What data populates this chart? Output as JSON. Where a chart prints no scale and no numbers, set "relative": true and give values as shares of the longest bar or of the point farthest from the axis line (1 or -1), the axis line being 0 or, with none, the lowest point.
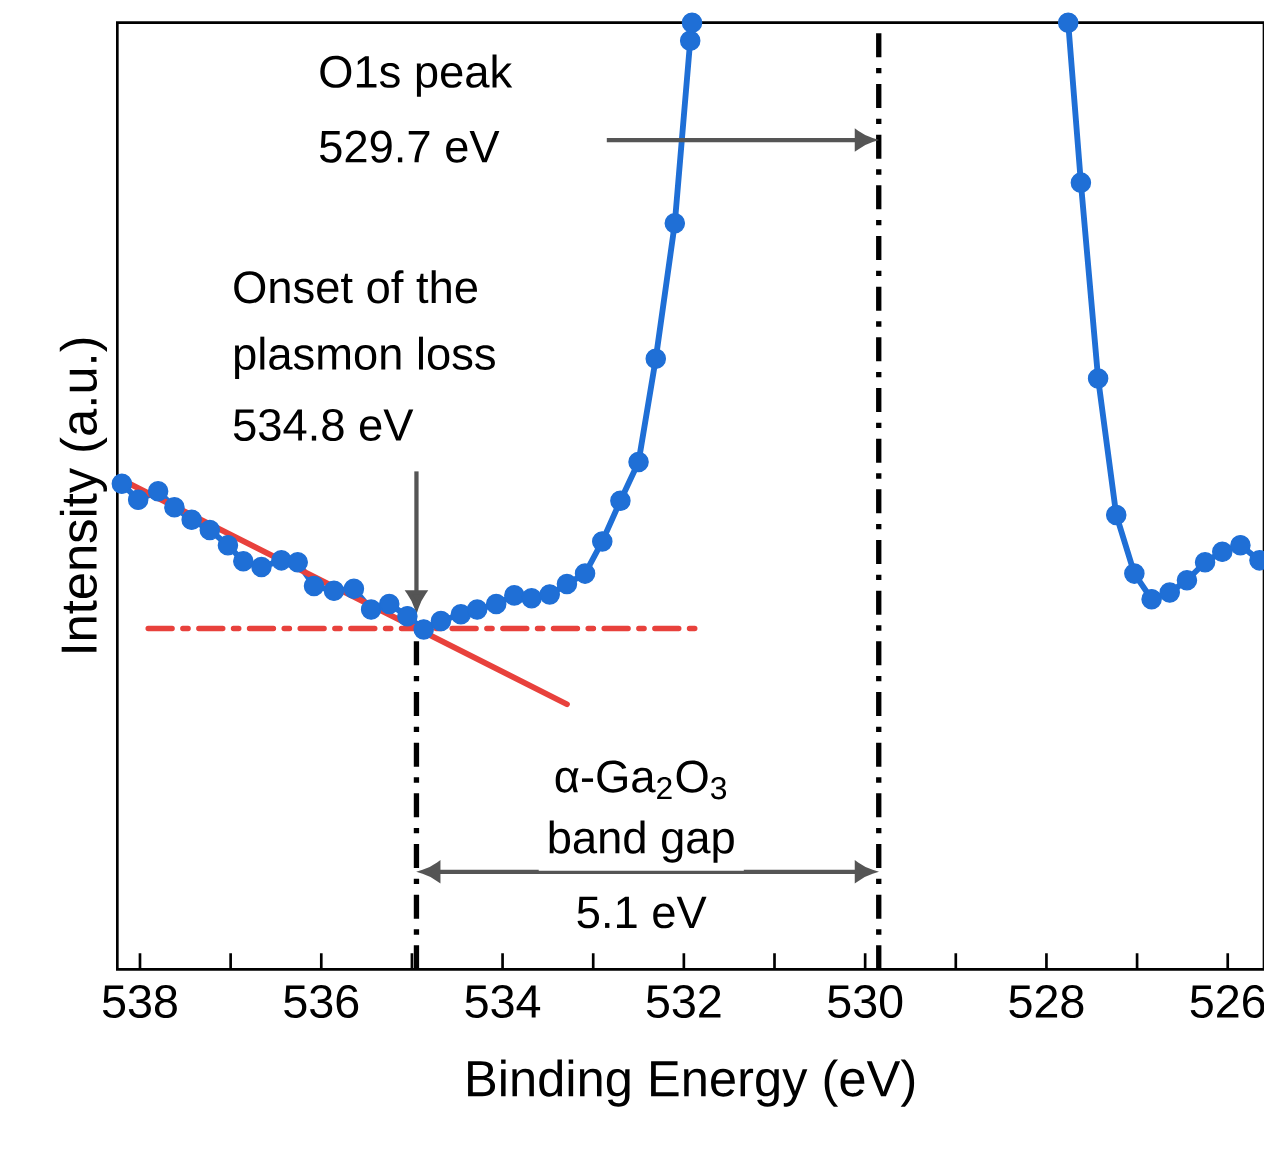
{
  "chart_data": {
    "type": "line",
    "xlabel": "Binding Energy (eV)",
    "ylabel": "Intensity (a.u.)",
    "relative": true,
    "xlim": [
      538.25,
      525.6
    ],
    "xticks": [
      538,
      {
        "value": 537,
        "label": null
      },
      536,
      {
        "value": 535,
        "label": null
      },
      534,
      {
        "value": 533,
        "label": null
      },
      532,
      {
        "value": 531,
        "label": null
      },
      530,
      {
        "value": 529,
        "label": null
      },
      528,
      {
        "value": 527,
        "label": null
      },
      526
    ],
    "series": [
      {
        "color": "#1f6fd6",
        "marker": "circle",
        "line_style": "solid",
        "x": [
          538.2,
          538.02,
          537.8,
          537.62,
          537.43,
          537.23,
          537.03,
          536.86,
          536.66,
          536.44,
          536.26,
          536.08,
          535.86,
          535.64,
          535.45,
          535.25,
          535.05,
          534.87,
          534.68,
          534.46,
          534.28,
          534.07,
          533.87,
          533.68,
          533.48,
          533.29,
          533.09,
          532.9,
          532.7,
          532.5,
          532.31,
          532.1,
          531.93,
          531.91,
          529.7,
          527.76,
          527.62,
          527.43,
          527.23,
          527.03,
          526.84,
          526.64,
          526.45,
          526.25,
          526.06,
          525.86,
          525.65
        ],
        "values": [
          0.513,
          0.496,
          0.505,
          0.488,
          0.475,
          0.464,
          0.448,
          0.431,
          0.425,
          0.432,
          0.43,
          0.405,
          0.4,
          0.402,
          0.38,
          0.386,
          0.373,
          0.359,
          0.368,
          0.375,
          0.38,
          0.386,
          0.395,
          0.392,
          0.396,
          0.407,
          0.418,
          0.452,
          0.495,
          0.536,
          0.645,
          0.788,
          0.981,
          1,
          null,
          1,
          0.831,
          0.624,
          0.48,
          0.418,
          0.391,
          0.398,
          0.411,
          0.43,
          0.441,
          0.448,
          0.432
        ]
      },
      {
        "color": "#e8413c",
        "marker": "none",
        "line_style": "solid",
        "x": [
          538.2,
          533.29
        ],
        "values": [
          0.517,
          0.28
        ]
      },
      {
        "color": "#e8413c",
        "marker": "none",
        "line_style": "dashdot",
        "x": [
          537.91,
          531.86
        ],
        "values": [
          0.36,
          0.36
        ]
      }
    ],
    "ref_lines": [
      {
        "axis": "x",
        "value": 534.95,
        "color": "#000000",
        "line_style": "dashdot"
      },
      {
        "axis": "x",
        "value": 529.85,
        "color": "#000000",
        "line_style": "dashdot"
      }
    ],
    "annotations": [
      "O1s peak",
      "529.7 eV",
      "Onset of the",
      "plasmon loss",
      "534.8 eV",
      "α-Ga$_{2}$O$_{3}$",
      "band gap",
      "5.1 eV"
    ]
  }
}
